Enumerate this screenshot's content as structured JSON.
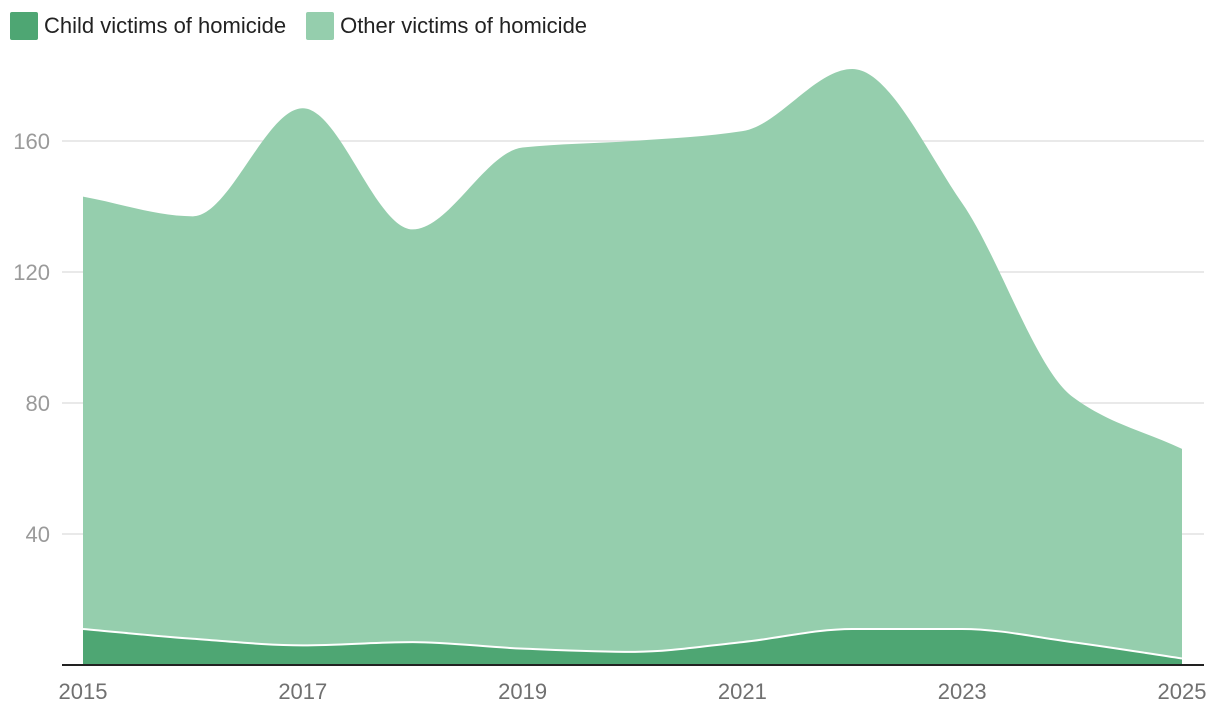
{
  "chart_data": {
    "type": "area",
    "stacked": true,
    "smooth": true,
    "x": [
      2015,
      2016,
      2017,
      2018,
      2019,
      2020,
      2021,
      2022,
      2023,
      2024,
      2025
    ],
    "x_ticks": [
      "2015",
      "2017",
      "2019",
      "2021",
      "2023",
      "2025"
    ],
    "y_ticks": [
      "40",
      "80",
      "120",
      "160"
    ],
    "ylim": [
      0,
      185
    ],
    "grid": true,
    "legend_position": "top-left",
    "title": "",
    "xlabel": "",
    "ylabel": "",
    "series": [
      {
        "name": "Child victims of homicide",
        "color": "#4ea673",
        "values": [
          11,
          8,
          6,
          7,
          5,
          4,
          7,
          11,
          11,
          7,
          2
        ]
      },
      {
        "name": "Other victims of homicide",
        "color": "#95cead",
        "values": [
          132,
          129,
          164,
          126,
          153,
          156,
          156,
          171,
          130,
          75,
          64
        ]
      }
    ]
  }
}
